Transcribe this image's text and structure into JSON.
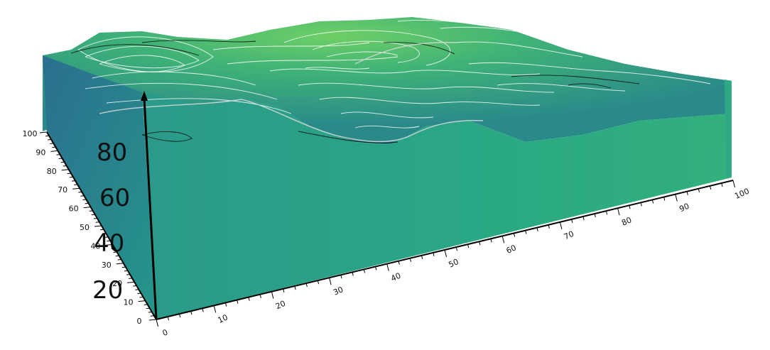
{
  "scene": {
    "vertical_axis": {
      "tick_labels": [
        "20",
        "40",
        "60",
        "80"
      ]
    },
    "left_axis": {
      "tick_labels": [
        "0",
        "10",
        "20",
        "30",
        "40",
        "50",
        "60",
        "70",
        "80",
        "90",
        "100"
      ]
    },
    "front_axis": {
      "tick_labels": [
        "0",
        "10",
        "20",
        "30",
        "40",
        "50",
        "60",
        "70",
        "80",
        "90",
        "100"
      ]
    },
    "colors": {
      "front_face": "#2aa884",
      "left_face": "#26818e",
      "top_face_bright": "#5dc46a",
      "top_face_dark": "#2b7a8c",
      "contour_light": "#ffffff",
      "contour_dark": "#000000",
      "axis": "#000000"
    }
  }
}
